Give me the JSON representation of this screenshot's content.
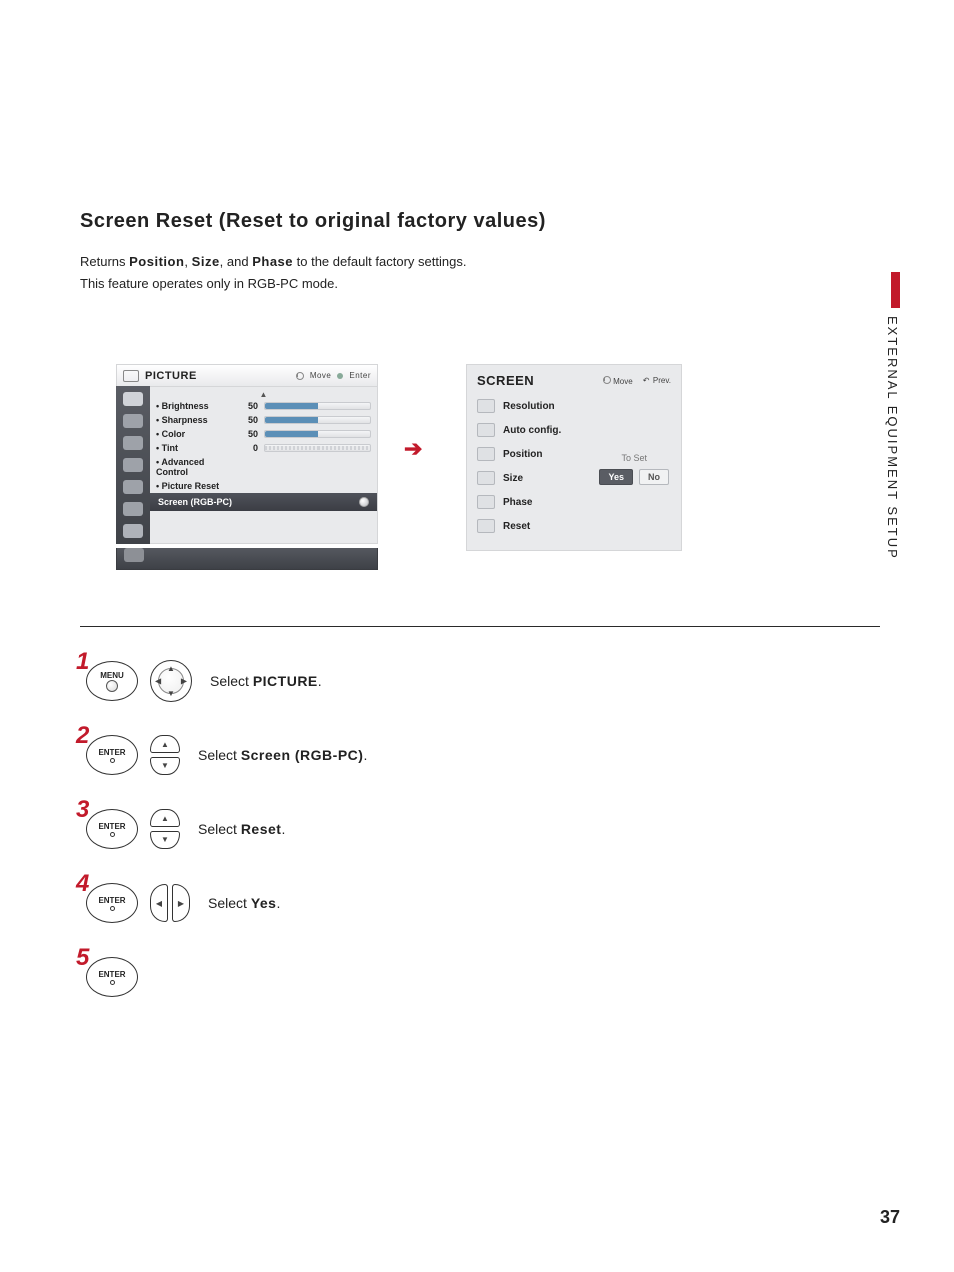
{
  "page_number": "37",
  "side_label": "EXTERNAL EQUIPMENT SETUP",
  "title": "Screen Reset (Reset to original factory values)",
  "intro": {
    "prefix": "Returns ",
    "b1": "Position",
    "sep1": ", ",
    "b2": "Size",
    "sep2": ", and ",
    "b3": "Phase",
    "suffix": " to the default factory settings.",
    "line2": "This feature operates only in RGB-PC mode."
  },
  "picture_menu": {
    "title": "PICTURE",
    "hint_move": "Move",
    "hint_enter": "Enter",
    "rows": [
      {
        "label": "• Brightness",
        "value": "50",
        "fill": 50
      },
      {
        "label": "• Sharpness",
        "value": "50",
        "fill": 50
      },
      {
        "label": "• Color",
        "value": "50",
        "fill": 50
      },
      {
        "label": "• Tint",
        "value": "0",
        "tint": true
      }
    ],
    "adv": "• Advanced Control",
    "reset": "• Picture Reset",
    "selected": "Screen (RGB-PC)"
  },
  "screen_menu": {
    "title": "SCREEN",
    "hint_move": "Move",
    "hint_prev": "Prev.",
    "items": [
      "Resolution",
      "Auto config.",
      "Position",
      "Size",
      "Phase",
      "Reset"
    ],
    "to_set": "To Set",
    "yes": "Yes",
    "no": "No"
  },
  "steps": [
    {
      "n": "1",
      "btn": "MENU",
      "pad": "full",
      "text_pre": "Select ",
      "text_b": "PICTURE",
      "text_post": "."
    },
    {
      "n": "2",
      "btn": "ENTER",
      "pad": "ud",
      "text_pre": "Select ",
      "text_b": "Screen (RGB-PC)",
      "text_post": "."
    },
    {
      "n": "3",
      "btn": "ENTER",
      "pad": "ud",
      "text_pre": "Select ",
      "text_b": "Reset",
      "text_post": "."
    },
    {
      "n": "4",
      "btn": "ENTER",
      "pad": "lr",
      "text_pre": "Select ",
      "text_b": "Yes",
      "text_post": "."
    },
    {
      "n": "5",
      "btn": "ENTER",
      "pad": "",
      "text_pre": "",
      "text_b": "",
      "text_post": ""
    }
  ],
  "colors": {
    "accent": "#c21a2b",
    "osd_dark": "#4f525a",
    "osd_bg": "#e9eaec",
    "bar_fill": "#5b8fb7"
  }
}
